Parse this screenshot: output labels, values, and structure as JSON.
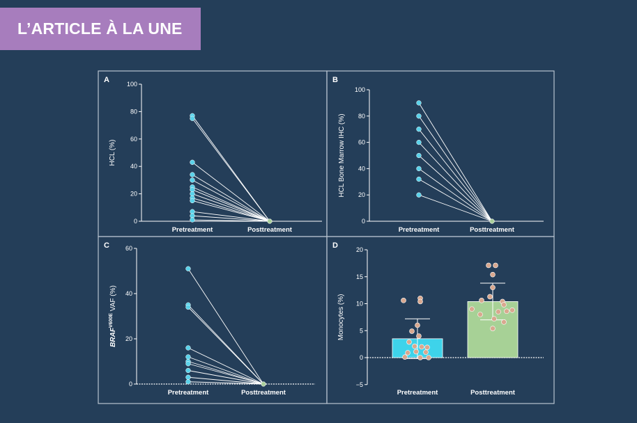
{
  "banner": {
    "title": "L’ARTICLE À LA UNE"
  },
  "colors": {
    "background": "#243e59",
    "panel_border": "#b8c3cf",
    "text": "#ffffff",
    "pre_point": "#5ad2ea",
    "post_point": "#a9cf9a",
    "bar_pre": "#3ed3ea",
    "bar_post": "#a7d196",
    "bar_point": "#d9a88f",
    "banner": "#a77dbd"
  },
  "chart_data": [
    {
      "panel": "A",
      "type": "line",
      "categories": [
        "Pretreatment",
        "Posttreatment"
      ],
      "ylabel": "HCL (%)",
      "ylim": [
        0,
        100
      ],
      "yticks": [
        0,
        20,
        40,
        60,
        80,
        100
      ],
      "pre_values": [
        77,
        75,
        43,
        34,
        30,
        25,
        23,
        20,
        17,
        15,
        7,
        4,
        1
      ],
      "post_values": [
        0,
        0,
        0,
        0,
        0,
        0,
        0,
        0,
        0,
        0,
        0,
        0,
        0
      ]
    },
    {
      "panel": "B",
      "type": "line",
      "categories": [
        "Pretreatment",
        "Posttreatment"
      ],
      "ylabel": "HCL Bone Marrow IHC (%)",
      "ylim": [
        0,
        100
      ],
      "yticks": [
        0,
        20,
        40,
        60,
        80,
        100
      ],
      "pre_values": [
        90,
        80,
        70,
        60,
        50,
        40,
        32,
        20
      ],
      "post_values": [
        0,
        0,
        0,
        0,
        0,
        0,
        0,
        0
      ]
    },
    {
      "panel": "C",
      "type": "line",
      "categories": [
        "Pretreatment",
        "Posttreatment"
      ],
      "ylabel": "BRAF V600E VAF (%)",
      "ylabel_main": "BRAF",
      "ylabel_sup": "V600E",
      "ylabel_rest": " VAF (%)",
      "ylim": [
        0,
        60
      ],
      "yticks": [
        0,
        20,
        40,
        60
      ],
      "pre_values": [
        51,
        35,
        34,
        16,
        12,
        10,
        9,
        6,
        3,
        1
      ],
      "post_values": [
        0,
        0,
        0,
        0,
        0,
        0,
        0,
        0,
        0,
        0
      ]
    },
    {
      "panel": "D",
      "type": "bar",
      "categories": [
        "Pretreatment",
        "Posttreatment"
      ],
      "ylabel": "Monocytes (%)",
      "ylim": [
        -5,
        20
      ],
      "yticks": [
        -5,
        0,
        5,
        10,
        15,
        20
      ],
      "ytick_labels": [
        "−5",
        "0",
        "5",
        "10",
        "15",
        "20"
      ],
      "values": [
        3.5,
        10.4
      ],
      "error": [
        3.7,
        3.4
      ],
      "points": [
        [
          10.6,
          11.0,
          10.4,
          6.0,
          4.9,
          4.0,
          2.9,
          2.1,
          2.0,
          1.9,
          1.1,
          1.0,
          0.9,
          0.1,
          0.0,
          0.0
        ],
        [
          17.1,
          17.1,
          15.4,
          13.0,
          11.3,
          10.6,
          10.4,
          9.8,
          9.0,
          8.8,
          8.6,
          8.5,
          8.0,
          7.2,
          6.6,
          5.4
        ]
      ]
    }
  ]
}
